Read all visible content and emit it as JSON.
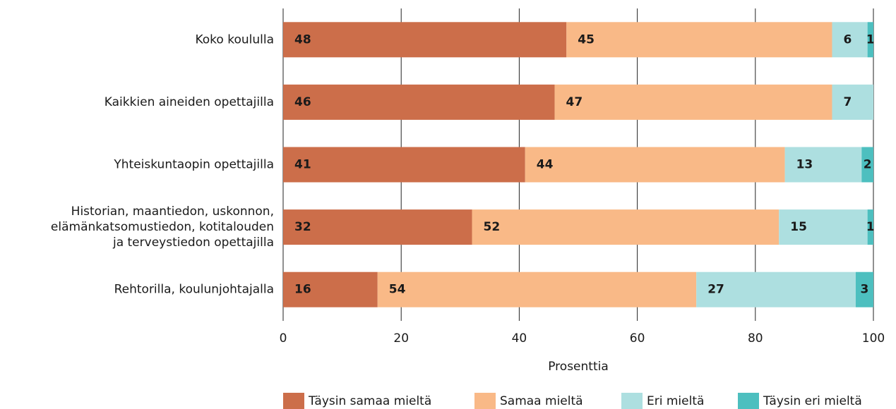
{
  "chart_data": {
    "type": "stacked-barh",
    "categories": [
      "Koko koululla",
      "Kaikkien aineiden opettajilla",
      "Yhteiskuntaopin opettajilla",
      "Historian, maantiedon, uskonnon,\nelämänkatsomustiedon, kotitalouden\nja terveystiedon opettajilla",
      "Rehtorilla, koulunjohtajalla"
    ],
    "series": [
      {
        "name": "Täysin samaa mieltä",
        "color": "#cc6e4a",
        "values": [
          48,
          46,
          41,
          32,
          16
        ]
      },
      {
        "name": "Samaa mieltä",
        "color": "#f9b987",
        "values": [
          45,
          47,
          44,
          52,
          54
        ]
      },
      {
        "name": "Eri mieltä",
        "color": "#addfe0",
        "values": [
          6,
          7,
          13,
          15,
          27
        ]
      },
      {
        "name": "Täysin eri mieltä",
        "color": "#4dbfbf",
        "values": [
          1,
          null,
          2,
          1,
          3
        ]
      }
    ],
    "xlabel": "Prosenttia",
    "xlim": [
      0,
      100
    ],
    "xticks": [
      0,
      20,
      40,
      60,
      80,
      100
    ],
    "grid": true
  }
}
